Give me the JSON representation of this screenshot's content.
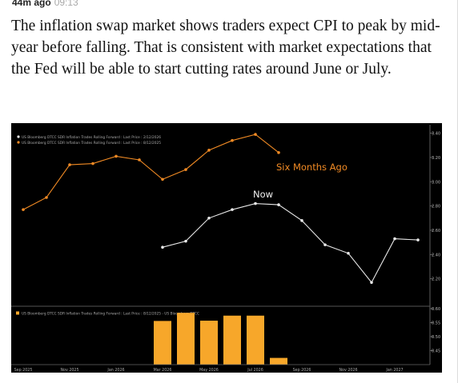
{
  "topbar": {
    "ago": "44m ago",
    "time": "09:13"
  },
  "article": {
    "paragraph": "The inflation swap market shows traders expect CPI to peak by mid-year before falling. That is consistent with market expectations that the Fed will be able to start cutting rates around June or July."
  },
  "colors": {
    "orange": "#f08a24",
    "white": "#e8e8e8",
    "bar": "#f7a72a",
    "background": "#000000"
  },
  "chart_data": [
    {
      "type": "line",
      "legend": [
        "US Bloomberg DTCC SDR Inflation Trades Rolling Forward : Last Price : 2/12/2026",
        "US Bloomberg DTCC SDR Inflation Trades Rolling Forward : Last Price : 8/12/2025"
      ],
      "annotations": {
        "orange": "Six Months Ago",
        "white": "Now"
      },
      "ylim": [
        2.0,
        3.45
      ],
      "yticks": [
        "3.40",
        "3.20",
        "3.00",
        "2.80",
        "2.60",
        "2.40",
        "2.20"
      ],
      "series": [
        {
          "color": "orange",
          "x": [
            "2025-09",
            "2025-10",
            "2025-11",
            "2025-12",
            "2026-01",
            "2026-02",
            "2026-03",
            "2026-04",
            "2026-05",
            "2026-06",
            "2026-07",
            "2026-08"
          ],
          "values": [
            2.77,
            2.87,
            3.14,
            3.15,
            3.21,
            3.18,
            3.02,
            3.1,
            3.26,
            3.34,
            3.39,
            3.24
          ]
        },
        {
          "color": "white",
          "x": [
            "2026-03",
            "2026-04",
            "2026-05",
            "2026-06",
            "2026-07",
            "2026-08",
            "2026-09",
            "2026-10",
            "2026-11",
            "2026-12",
            "2027-01",
            "2027-02"
          ],
          "values": [
            2.46,
            2.51,
            2.7,
            2.77,
            2.82,
            2.81,
            2.68,
            2.48,
            2.41,
            2.17,
            2.53,
            2.52
          ]
        }
      ]
    },
    {
      "type": "bar",
      "legend": "US Bloomberg DTCC SDR Inflation Trades Rolling Forward : Last Price : 8/12/2025 - US Bloomberg DTCC",
      "ylim": [
        0.4,
        0.6
      ],
      "yticks": [
        "0.60",
        "0.55",
        "0.50",
        "0.45"
      ],
      "x": [
        "2026-03",
        "2026-04",
        "2026-05",
        "2026-06",
        "2026-07",
        "2026-08"
      ],
      "values": [
        0.556,
        0.585,
        0.557,
        0.575,
        0.575,
        0.424
      ],
      "xticks": [
        "Sep 2025",
        "Nov 2025",
        "Jan 2026",
        "Mar 2026",
        "May 2026",
        "Jul 2026",
        "Sep 2026",
        "Nov 2026",
        "Jan 2027"
      ]
    }
  ]
}
